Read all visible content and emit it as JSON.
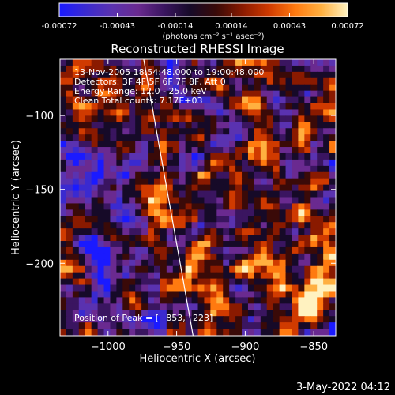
{
  "colors": {
    "background": "#000000",
    "foreground": "#ffffff",
    "limb": "#ffffff",
    "colormap": [
      "#1a1aff",
      "#3a2ad0",
      "#5a32b0",
      "#6a2a90",
      "#3a1560",
      "#160a28",
      "#3a0a08",
      "#8a1a00",
      "#d03a00",
      "#ff7a10",
      "#ffb040",
      "#fff2c0"
    ]
  },
  "colorbar": {
    "min": -0.00072,
    "max": 0.00072,
    "tick_labels": [
      "-0.00072",
      "-0.00043",
      "-0.00014",
      "0.00014",
      "0.00043",
      "0.00072"
    ],
    "unit_label": "(photons cm⁻² s⁻¹ asec⁻²)"
  },
  "chart_data": {
    "type": "heatmap",
    "title": "Reconstructed RHESSI Image",
    "xlabel": "Heliocentric X (arcsec)",
    "ylabel": "Heliocentric Y (arcsec)",
    "xlim": [
      -1035,
      -834
    ],
    "ylim": [
      -249,
      -62
    ],
    "xticks": [
      -1000,
      -950,
      -900,
      -850
    ],
    "xtick_labels": [
      "−1000",
      "−950",
      "−900",
      "−850"
    ],
    "yticks": [
      -100,
      -150,
      -200
    ],
    "ytick_labels": [
      "−100",
      "−150",
      "−200"
    ],
    "peak": [
      -853,
      -223
    ],
    "limb_line": [
      [
        -974,
        -62
      ],
      [
        -938,
        -249
      ]
    ],
    "annotations": [
      "13-Nov-2005 18:54:48.000 to 19:00:48.000",
      "Detectors: 3F 4F 5F 6F 7F 8F, Att 0",
      "Energy Range: 12.0 - 25.0 keV",
      "Clean    Total counts: 7.17E+03"
    ],
    "peak_label": "Position of Peak = [−853,−223]"
  },
  "footer": {
    "timestamp": "3-May-2022 04:12"
  }
}
